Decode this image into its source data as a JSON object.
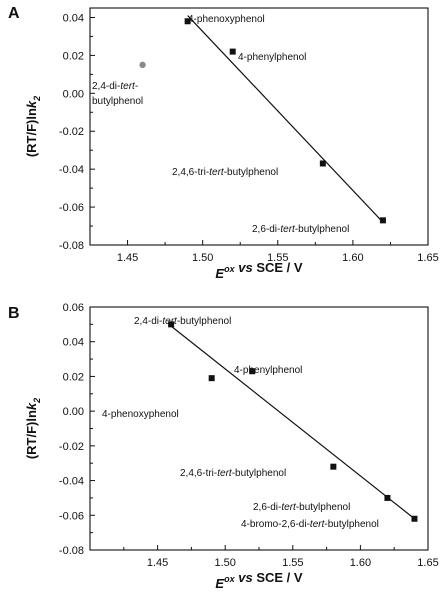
{
  "chart_data": [
    {
      "type": "scatter",
      "panel_label": "A",
      "xlabel": {
        "main": "E",
        "sup": "ox",
        "rest": " vs SCE / V"
      },
      "ylabel": {
        "main": "(RT/F)ln",
        "k": "k",
        "sub": "2"
      },
      "xlim": [
        1.425,
        1.65
      ],
      "ylim": [
        -0.08,
        0.045
      ],
      "xticks": [
        "1.45",
        "1.50",
        "1.55",
        "1.60",
        "1.65"
      ],
      "yticks": [
        "0.04",
        "0.02",
        "0.00",
        "-0.02",
        "-0.04",
        "-0.06",
        "-0.08"
      ],
      "fit_line": {
        "x": [
          1.49,
          1.62
        ],
        "y": [
          0.041,
          -0.068
        ]
      },
      "points": [
        {
          "label": "4-phenoxyphenol",
          "x": 1.49,
          "y": 0.038,
          "color": "#111111",
          "marker": "square"
        },
        {
          "label": "4-phenylphenol",
          "x": 1.52,
          "y": 0.022,
          "color": "#111111",
          "marker": "square"
        },
        {
          "label": "2,4,6-tri-tert-butylphenol",
          "x": 1.58,
          "y": -0.037,
          "color": "#111111",
          "marker": "square"
        },
        {
          "label": "2,6-di-tert-butylphenol",
          "x": 1.62,
          "y": -0.067,
          "color": "#111111",
          "marker": "square"
        },
        {
          "label": "2,4-di-tert-butylphenol",
          "x": 1.46,
          "y": 0.015,
          "color": "#8a8a8a",
          "marker": "circle"
        }
      ],
      "labels": [
        {
          "pre": "4-phenoxyphenol",
          "it": "",
          "post": "",
          "color": "#111111"
        },
        {
          "pre": "4-phenylphenol",
          "it": "",
          "post": "",
          "color": "#111111"
        },
        {
          "pre": "2,4,6-tri-",
          "it": "tert",
          "post": "-butylphenol",
          "color": "#111111"
        },
        {
          "pre": "2,6-di-",
          "it": "tert",
          "post": "-butylphenol",
          "color": "#111111"
        },
        {
          "pre": "2,4-di-",
          "it": "tert",
          "post": "-",
          "color": "#6e6e6e"
        },
        {
          "pre": "butylphenol",
          "it": "",
          "post": "",
          "color": "#6e6e6e"
        }
      ]
    },
    {
      "type": "scatter",
      "panel_label": "B",
      "xlabel": {
        "main": "E",
        "sup": "ox",
        "rest": " vs SCE / V"
      },
      "ylabel": {
        "main": "(RT/F)ln",
        "k": "k",
        "sub": "2"
      },
      "xlim": [
        1.4,
        1.65
      ],
      "ylim": [
        -0.08,
        0.06
      ],
      "xticks": [
        "1.45",
        "1.50",
        "1.55",
        "1.60",
        "1.65"
      ],
      "yticks": [
        "0.06",
        "0.04",
        "0.02",
        "0.00",
        "-0.02",
        "-0.04",
        "-0.06",
        "-0.08"
      ],
      "fit_line": {
        "x": [
          1.46,
          1.64
        ],
        "y": [
          0.049,
          -0.062
        ]
      },
      "points": [
        {
          "label": "2,4-di-tert-butylphenol",
          "x": 1.46,
          "y": 0.05,
          "color": "#111111",
          "marker": "square"
        },
        {
          "label": "4-phenoxyphenol",
          "x": 1.49,
          "y": 0.019,
          "color": "#111111",
          "marker": "square"
        },
        {
          "label": "4-phenylphenol",
          "x": 1.52,
          "y": 0.023,
          "color": "#111111",
          "marker": "square"
        },
        {
          "label": "2,4,6-tri-tert-butylphenol",
          "x": 1.58,
          "y": -0.032,
          "color": "#111111",
          "marker": "square"
        },
        {
          "label": "2,6-di-tert-butylphenol",
          "x": 1.62,
          "y": -0.05,
          "color": "#111111",
          "marker": "square"
        },
        {
          "label": "4-bromo-2,6-di-tert-butylphenol",
          "x": 1.64,
          "y": -0.062,
          "color": "#111111",
          "marker": "square"
        }
      ],
      "labels": [
        {
          "pre": "2,4-di-",
          "it": "tert",
          "post": "-butylphenol",
          "color": "#111111"
        },
        {
          "pre": "4-phenoxyphenol",
          "it": "",
          "post": "",
          "color": "#111111"
        },
        {
          "pre": "4-phenylphenol",
          "it": "",
          "post": "",
          "color": "#111111"
        },
        {
          "pre": "2,4,6-tri-",
          "it": "tert",
          "post": "-butylphenol",
          "color": "#111111"
        },
        {
          "pre": "2,6-di-",
          "it": "tert",
          "post": "-butylphenol",
          "color": "#111111"
        },
        {
          "pre": "4-bromo-2,6-di-",
          "it": "tert",
          "post": "-butylphenol",
          "color": "#111111"
        }
      ]
    }
  ]
}
